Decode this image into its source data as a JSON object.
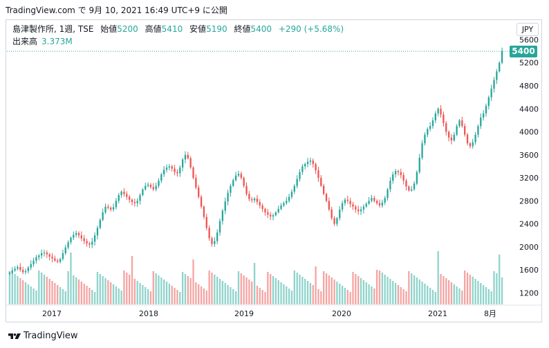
{
  "header": {
    "source_line": "TradingView.com で 9月 10, 2021 16:49 UTC+9 に公開"
  },
  "legend": {
    "symbol": "島津製作所, 1週, TSE",
    "open_label": "始値",
    "open": "5200",
    "high_label": "高値",
    "high": "5410",
    "low_label": "安値",
    "low": "5190",
    "close_label": "終値",
    "close": "5400",
    "change": "+290 (+5.68%)",
    "volume_label": "出来高",
    "volume": "3.373M"
  },
  "currency": "JPY",
  "last_price_label": "5400",
  "footer": {
    "brand": "TradingView"
  },
  "colors": {
    "up": "#26a69a",
    "down": "#ef5350",
    "up_volume": "#8fd3cb",
    "down_volume": "#f4a4a2",
    "axis_text": "#131722"
  },
  "chart_data": {
    "type": "candlestick",
    "title": "",
    "x_tick_labels": [
      "2017",
      "2018",
      "2019",
      "2020",
      "2021",
      "8月"
    ],
    "y_tick_labels": [
      "1200",
      "1600",
      "2000",
      "2400",
      "2800",
      "3200",
      "3600",
      "4000",
      "4400",
      "4800",
      "5200",
      "5600"
    ],
    "ylim": [
      1000,
      5750
    ],
    "last_close": 5400,
    "series_close": [
      1550,
      1590,
      1620,
      1650,
      1600,
      1560,
      1580,
      1640,
      1700,
      1760,
      1820,
      1850,
      1890,
      1900,
      1870,
      1830,
      1800,
      1760,
      1740,
      1790,
      1890,
      1990,
      2080,
      2160,
      2210,
      2240,
      2200,
      2150,
      2100,
      2060,
      2040,
      2090,
      2200,
      2330,
      2470,
      2600,
      2700,
      2680,
      2650,
      2690,
      2800,
      2900,
      2960,
      2920,
      2870,
      2820,
      2780,
      2760,
      2800,
      2900,
      3000,
      3060,
      3080,
      3040,
      3000,
      3060,
      3150,
      3260,
      3340,
      3380,
      3400,
      3360,
      3300,
      3280,
      3380,
      3520,
      3600,
      3540,
      3380,
      3200,
      3030,
      2870,
      2700,
      2520,
      2330,
      2150,
      2050,
      2100,
      2250,
      2450,
      2630,
      2790,
      2940,
      3060,
      3160,
      3240,
      3270,
      3200,
      3060,
      2920,
      2830,
      2810,
      2840,
      2780,
      2720,
      2660,
      2600,
      2560,
      2530,
      2550,
      2600,
      2660,
      2720,
      2760,
      2800,
      2870,
      2960,
      3060,
      3180,
      3300,
      3400,
      3440,
      3480,
      3500,
      3440,
      3330,
      3200,
      3060,
      2920,
      2800,
      2650,
      2500,
      2400,
      2500,
      2650,
      2760,
      2820,
      2800,
      2740,
      2700,
      2650,
      2620,
      2650,
      2700,
      2750,
      2800,
      2850,
      2800,
      2760,
      2720,
      2770,
      2850,
      3000,
      3150,
      3260,
      3320,
      3300,
      3250,
      3150,
      3050,
      2980,
      3000,
      3100,
      3300,
      3550,
      3800,
      3950,
      4050,
      4100,
      4200,
      4320,
      4400,
      4300,
      4150,
      4000,
      3900,
      3850,
      3950,
      4100,
      4200,
      4100,
      3950,
      3800,
      3750,
      3820,
      3950,
      4100,
      4250,
      4320,
      4450,
      4600,
      4750,
      4900,
      5050,
      5200,
      5400
    ]
  }
}
